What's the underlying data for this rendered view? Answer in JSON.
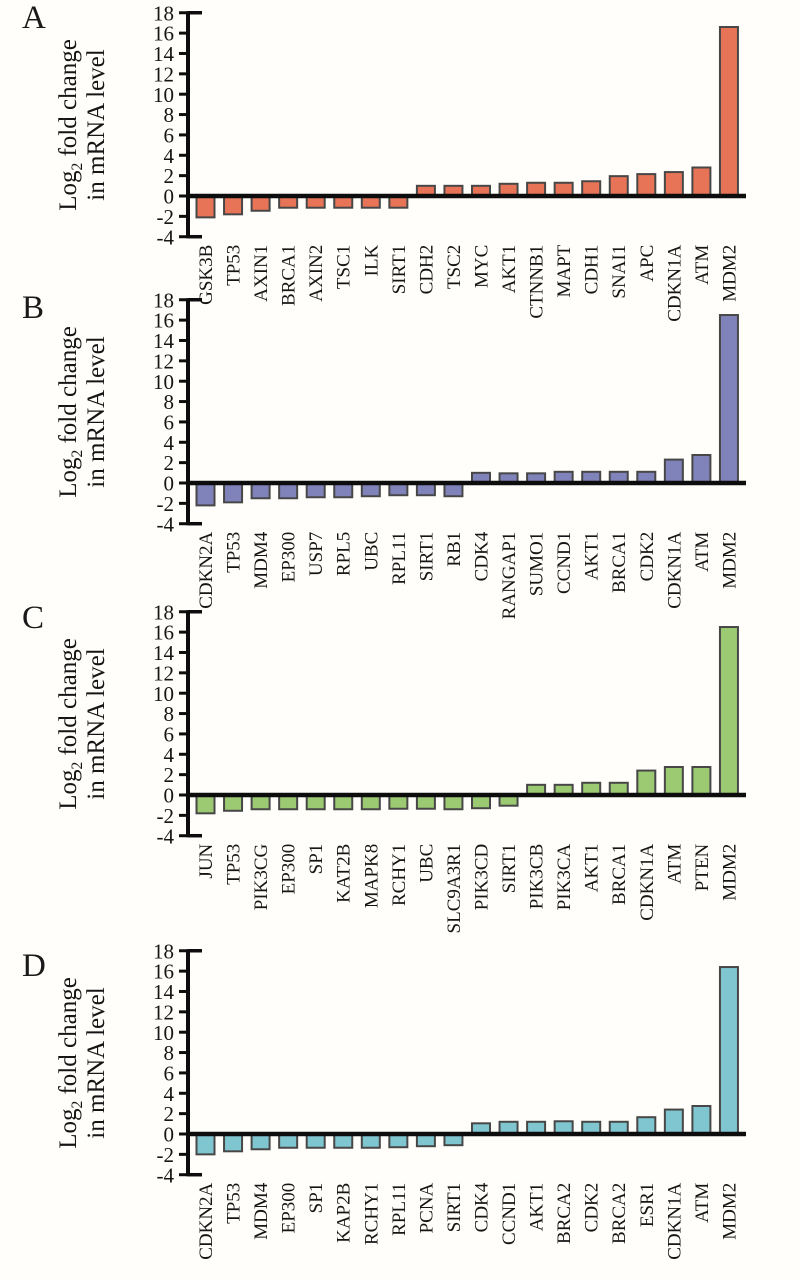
{
  "figure": {
    "ylabel": {
      "pre": "Log",
      "sub": "2",
      "post": " fold change",
      "line2": "in mRNA level"
    },
    "colors": {
      "axis": "#0d0d0d",
      "bar_stroke": "#474747",
      "text": "#151515"
    }
  },
  "chart_data": [
    {
      "type": "bar",
      "panel_label": "A",
      "title": "",
      "ylabel": "Log2 fold change in mRNA level",
      "xlabel": "",
      "ylim": [
        -4,
        18
      ],
      "ytick_step": 2,
      "grid": false,
      "legend": "none",
      "bar_color": "#e87458",
      "categories": [
        "GSK3B",
        "TP53",
        "AXIN1",
        "BRCA1",
        "AXIN2",
        "TSC1",
        "ILK",
        "SIRT1",
        "CDH2",
        "TSC2",
        "MYC",
        "AKT1",
        "CTNNB1",
        "MAPT",
        "CDH1",
        "SNAI1",
        "APC",
        "CDKN1A",
        "ATM",
        "MDM2"
      ],
      "values": [
        -2.1,
        -1.8,
        -1.45,
        -1.15,
        -1.15,
        -1.15,
        -1.15,
        -1.15,
        1.0,
        1.0,
        1.0,
        1.2,
        1.3,
        1.3,
        1.45,
        1.95,
        2.15,
        2.35,
        2.8,
        16.6
      ]
    },
    {
      "type": "bar",
      "panel_label": "B",
      "title": "",
      "ylabel": "Log2 fold change in mRNA level",
      "xlabel": "",
      "ylim": [
        -4,
        18
      ],
      "ytick_step": 2,
      "grid": false,
      "legend": "none",
      "bar_color": "#8082ba",
      "categories": [
        "CDKN2A",
        "TP53",
        "MDM4",
        "EP300",
        "USP7",
        "RPL5",
        "UBC",
        "RPL11",
        "SIRT1",
        "RB1",
        "CDK4",
        "RANGAP1",
        "SUMO1",
        "CCND1",
        "AKT1",
        "BRCA1",
        "CDK2",
        "CDKN1A",
        "ATM",
        "MDM2"
      ],
      "values": [
        -2.2,
        -1.9,
        -1.5,
        -1.5,
        -1.4,
        -1.4,
        -1.3,
        -1.2,
        -1.2,
        -1.3,
        1.0,
        0.95,
        0.95,
        1.1,
        1.1,
        1.1,
        1.1,
        2.3,
        2.75,
        16.5
      ]
    },
    {
      "type": "bar",
      "panel_label": "C",
      "title": "",
      "ylabel": "Log2 fold change in mRNA level",
      "xlabel": "",
      "ylim": [
        -4,
        18
      ],
      "ytick_step": 2,
      "grid": false,
      "legend": "none",
      "bar_color": "#9cca72",
      "categories": [
        "JUN",
        "TP53",
        "PIK3CG",
        "EP300",
        "SP1",
        "KAT2B",
        "MAPK8",
        "RCHY1",
        "UBC",
        "SLC9A3R1",
        "PIK3CD",
        "SIRT1",
        "PIK3CB",
        "PIK3CA",
        "AKT1",
        "BRCA1",
        "CDKN1A",
        "ATM",
        "PTEN",
        "MDM2"
      ],
      "values": [
        -1.8,
        -1.55,
        -1.4,
        -1.4,
        -1.4,
        -1.4,
        -1.4,
        -1.35,
        -1.35,
        -1.4,
        -1.3,
        -1.05,
        1.0,
        1.0,
        1.2,
        1.2,
        2.4,
        2.75,
        2.75,
        16.5
      ]
    },
    {
      "type": "bar",
      "panel_label": "D",
      "title": "",
      "ylabel": "Log2 fold change in mRNA level",
      "xlabel": "",
      "ylim": [
        -4,
        18
      ],
      "ytick_step": 2,
      "grid": false,
      "legend": "none",
      "bar_color": "#80c6d1",
      "categories": [
        "CDKN2A",
        "TP53",
        "MDM4",
        "EP300",
        "SP1",
        "KAP2B",
        "RCHY1",
        "RPL11",
        "PCNA",
        "SIRT1",
        "CDK4",
        "CCND1",
        "AKT1",
        "BRCA2",
        "CDK2",
        "BRCA2",
        "ESR1",
        "CDKN1A",
        "ATM",
        "MDM2"
      ],
      "values": [
        -2.0,
        -1.7,
        -1.5,
        -1.35,
        -1.35,
        -1.35,
        -1.35,
        -1.3,
        -1.2,
        -1.1,
        1.05,
        1.2,
        1.2,
        1.25,
        1.2,
        1.2,
        1.65,
        2.4,
        2.75,
        16.4
      ]
    }
  ]
}
